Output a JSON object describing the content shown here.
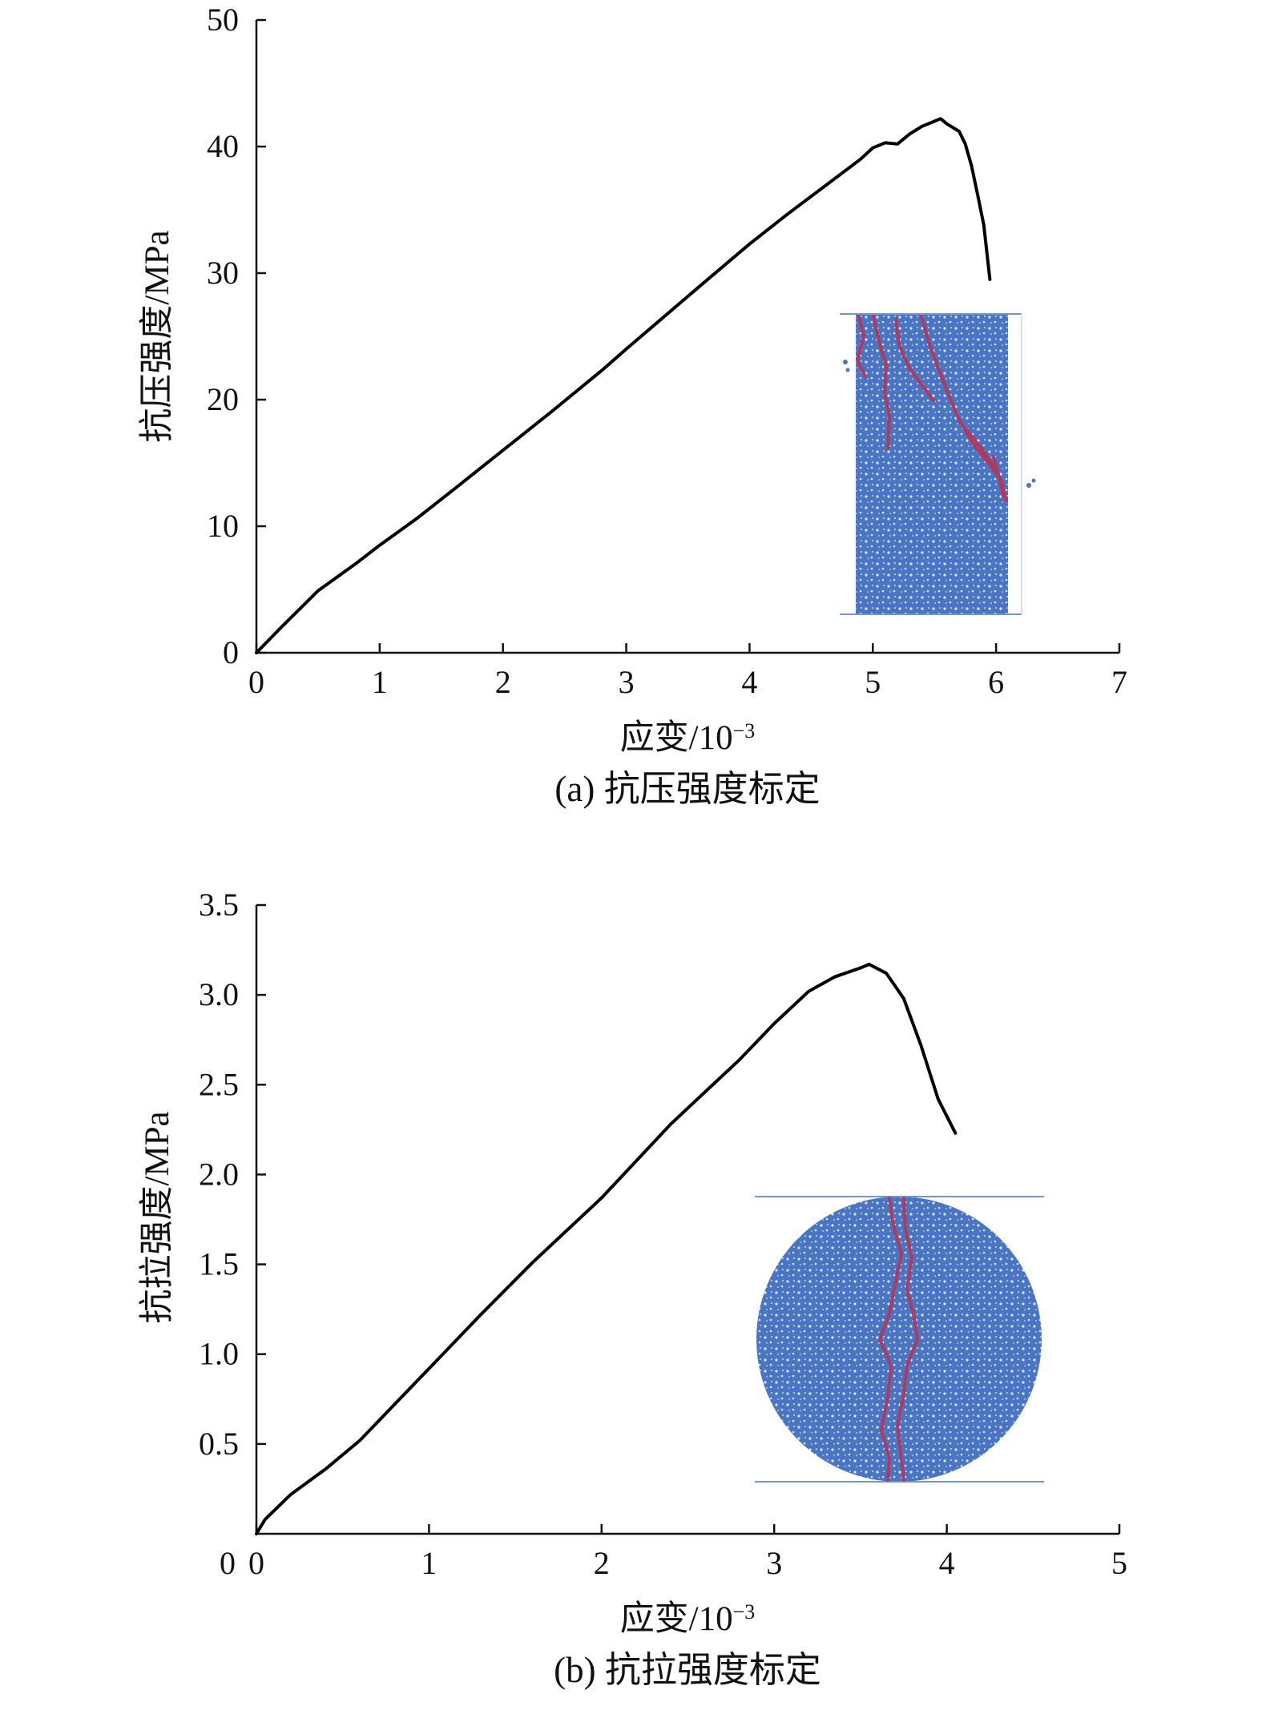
{
  "chart_data": [
    {
      "type": "line",
      "caption": "(a) 抗压强度标定",
      "xlabel": "应变/10",
      "xlabel_sup": "−3",
      "ylabel": "抗压强度/MPa",
      "xlim": [
        0,
        7
      ],
      "ylim": [
        0,
        50
      ],
      "xticks": [
        0,
        1,
        2,
        3,
        4,
        5,
        6,
        7
      ],
      "yticks": [
        0,
        10,
        20,
        30,
        40,
        50
      ],
      "ytick_labels": [
        "0",
        "10",
        "20",
        "30",
        "40",
        "50"
      ],
      "grid": false,
      "inset": "rectangular specimen with crack pattern",
      "series": [
        {
          "x": [
            0,
            0.2,
            0.5,
            0.8,
            1.0,
            1.3,
            1.6,
            2.0,
            2.4,
            2.8,
            3.0,
            3.3,
            3.6,
            4.0,
            4.3,
            4.6,
            4.9,
            5.0,
            5.1,
            5.2,
            5.3,
            5.4,
            5.5,
            5.55,
            5.6,
            5.7,
            5.75,
            5.8,
            5.85,
            5.9,
            5.95
          ],
          "y": [
            0,
            2,
            4.9,
            7,
            8.5,
            10.6,
            12.9,
            16,
            19.1,
            22.3,
            24,
            26.5,
            29,
            32.3,
            34.6,
            36.8,
            39,
            39.9,
            40.3,
            40.2,
            41,
            41.6,
            42,
            42.2,
            41.8,
            41.2,
            40.2,
            38.5,
            36.2,
            33.8,
            29.5
          ]
        }
      ]
    },
    {
      "type": "line",
      "caption": "(b) 抗拉强度标定",
      "xlabel": "应变/10",
      "xlabel_sup": "−3",
      "ylabel": "抗拉强度/MPa",
      "xlim": [
        0,
        5
      ],
      "ylim": [
        0,
        3.5
      ],
      "xticks": [
        0,
        1,
        2,
        3,
        4,
        5
      ],
      "yticks": [
        0.5,
        1.0,
        1.5,
        2.0,
        2.5,
        3.0,
        3.5
      ],
      "ytick_labels": [
        "0.5",
        "1.0",
        "1.5",
        "2.0",
        "2.5",
        "3.0",
        "3.5"
      ],
      "y_origin_label": "0",
      "grid": false,
      "inset": "circular disc specimen with vertical crack",
      "series": [
        {
          "x": [
            0,
            0.05,
            0.2,
            0.4,
            0.6,
            0.8,
            1.0,
            1.3,
            1.6,
            2.0,
            2.4,
            2.8,
            3.0,
            3.2,
            3.35,
            3.5,
            3.55,
            3.65,
            3.75,
            3.85,
            3.95,
            4.05
          ],
          "y": [
            0,
            0.08,
            0.22,
            0.36,
            0.52,
            0.72,
            0.92,
            1.22,
            1.51,
            1.87,
            2.28,
            2.64,
            2.84,
            3.02,
            3.1,
            3.15,
            3.17,
            3.12,
            2.98,
            2.72,
            2.42,
            2.23
          ]
        }
      ]
    }
  ],
  "colors": {
    "curve": "#000000",
    "axis": "#111111",
    "particles": "#4a74c4",
    "crack": "#b03a5c",
    "boundary": "#6f95d6"
  }
}
